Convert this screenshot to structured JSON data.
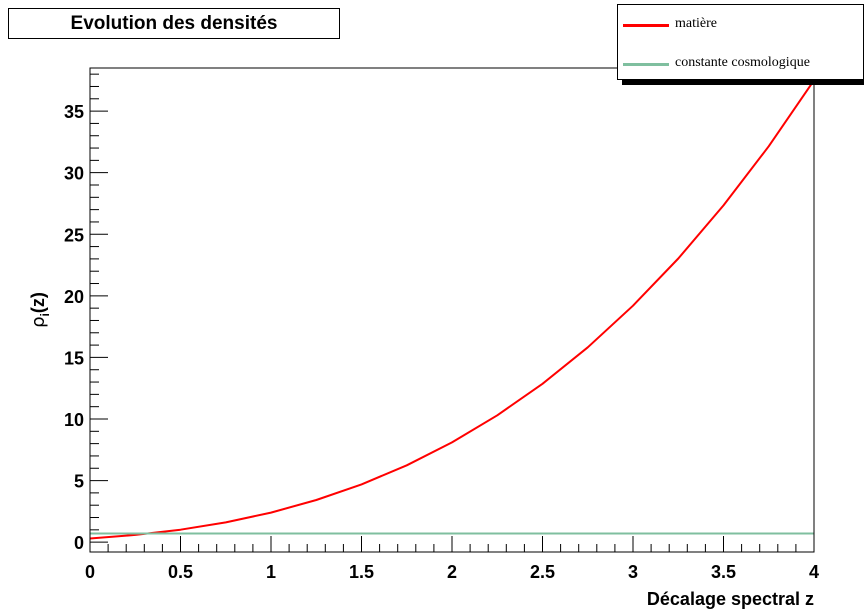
{
  "chart_data": {
    "type": "line",
    "title": "Evolution des densités",
    "xlabel": "Décalage spectral z",
    "ylabel_main": "ρ",
    "ylabel_sub": "i",
    "ylabel_tail": "(z)",
    "xlim": [
      0,
      4
    ],
    "ylim": [
      -0.8,
      38.5
    ],
    "x_ticks": [
      0,
      0.5,
      1,
      1.5,
      2,
      2.5,
      3,
      3.5,
      4
    ],
    "x_tick_labels": [
      "0",
      "0.5",
      "1",
      "1.5",
      "2",
      "2.5",
      "3",
      "3.5",
      "4"
    ],
    "y_ticks": [
      0,
      5,
      10,
      15,
      20,
      25,
      30,
      35
    ],
    "y_tick_labels": [
      "0",
      "5",
      "10",
      "15",
      "20",
      "25",
      "30",
      "35"
    ],
    "grid": false,
    "legend_position": "top-right",
    "series": [
      {
        "name": "matière",
        "color": "#ff0000",
        "x": [
          0,
          0.25,
          0.5,
          0.75,
          1,
          1.25,
          1.5,
          1.75,
          2,
          2.25,
          2.5,
          2.75,
          3,
          3.25,
          3.5,
          3.75,
          4
        ],
        "y": [
          0.3,
          0.59,
          1.01,
          1.6,
          2.4,
          3.42,
          4.69,
          6.24,
          8.1,
          10.3,
          12.86,
          15.82,
          19.2,
          23.03,
          27.34,
          32.15,
          37.5
        ]
      },
      {
        "name": "constante cosmologique",
        "color": "#7fbf9f",
        "x": [
          0,
          4
        ],
        "y": [
          0.7,
          0.7
        ]
      }
    ]
  }
}
